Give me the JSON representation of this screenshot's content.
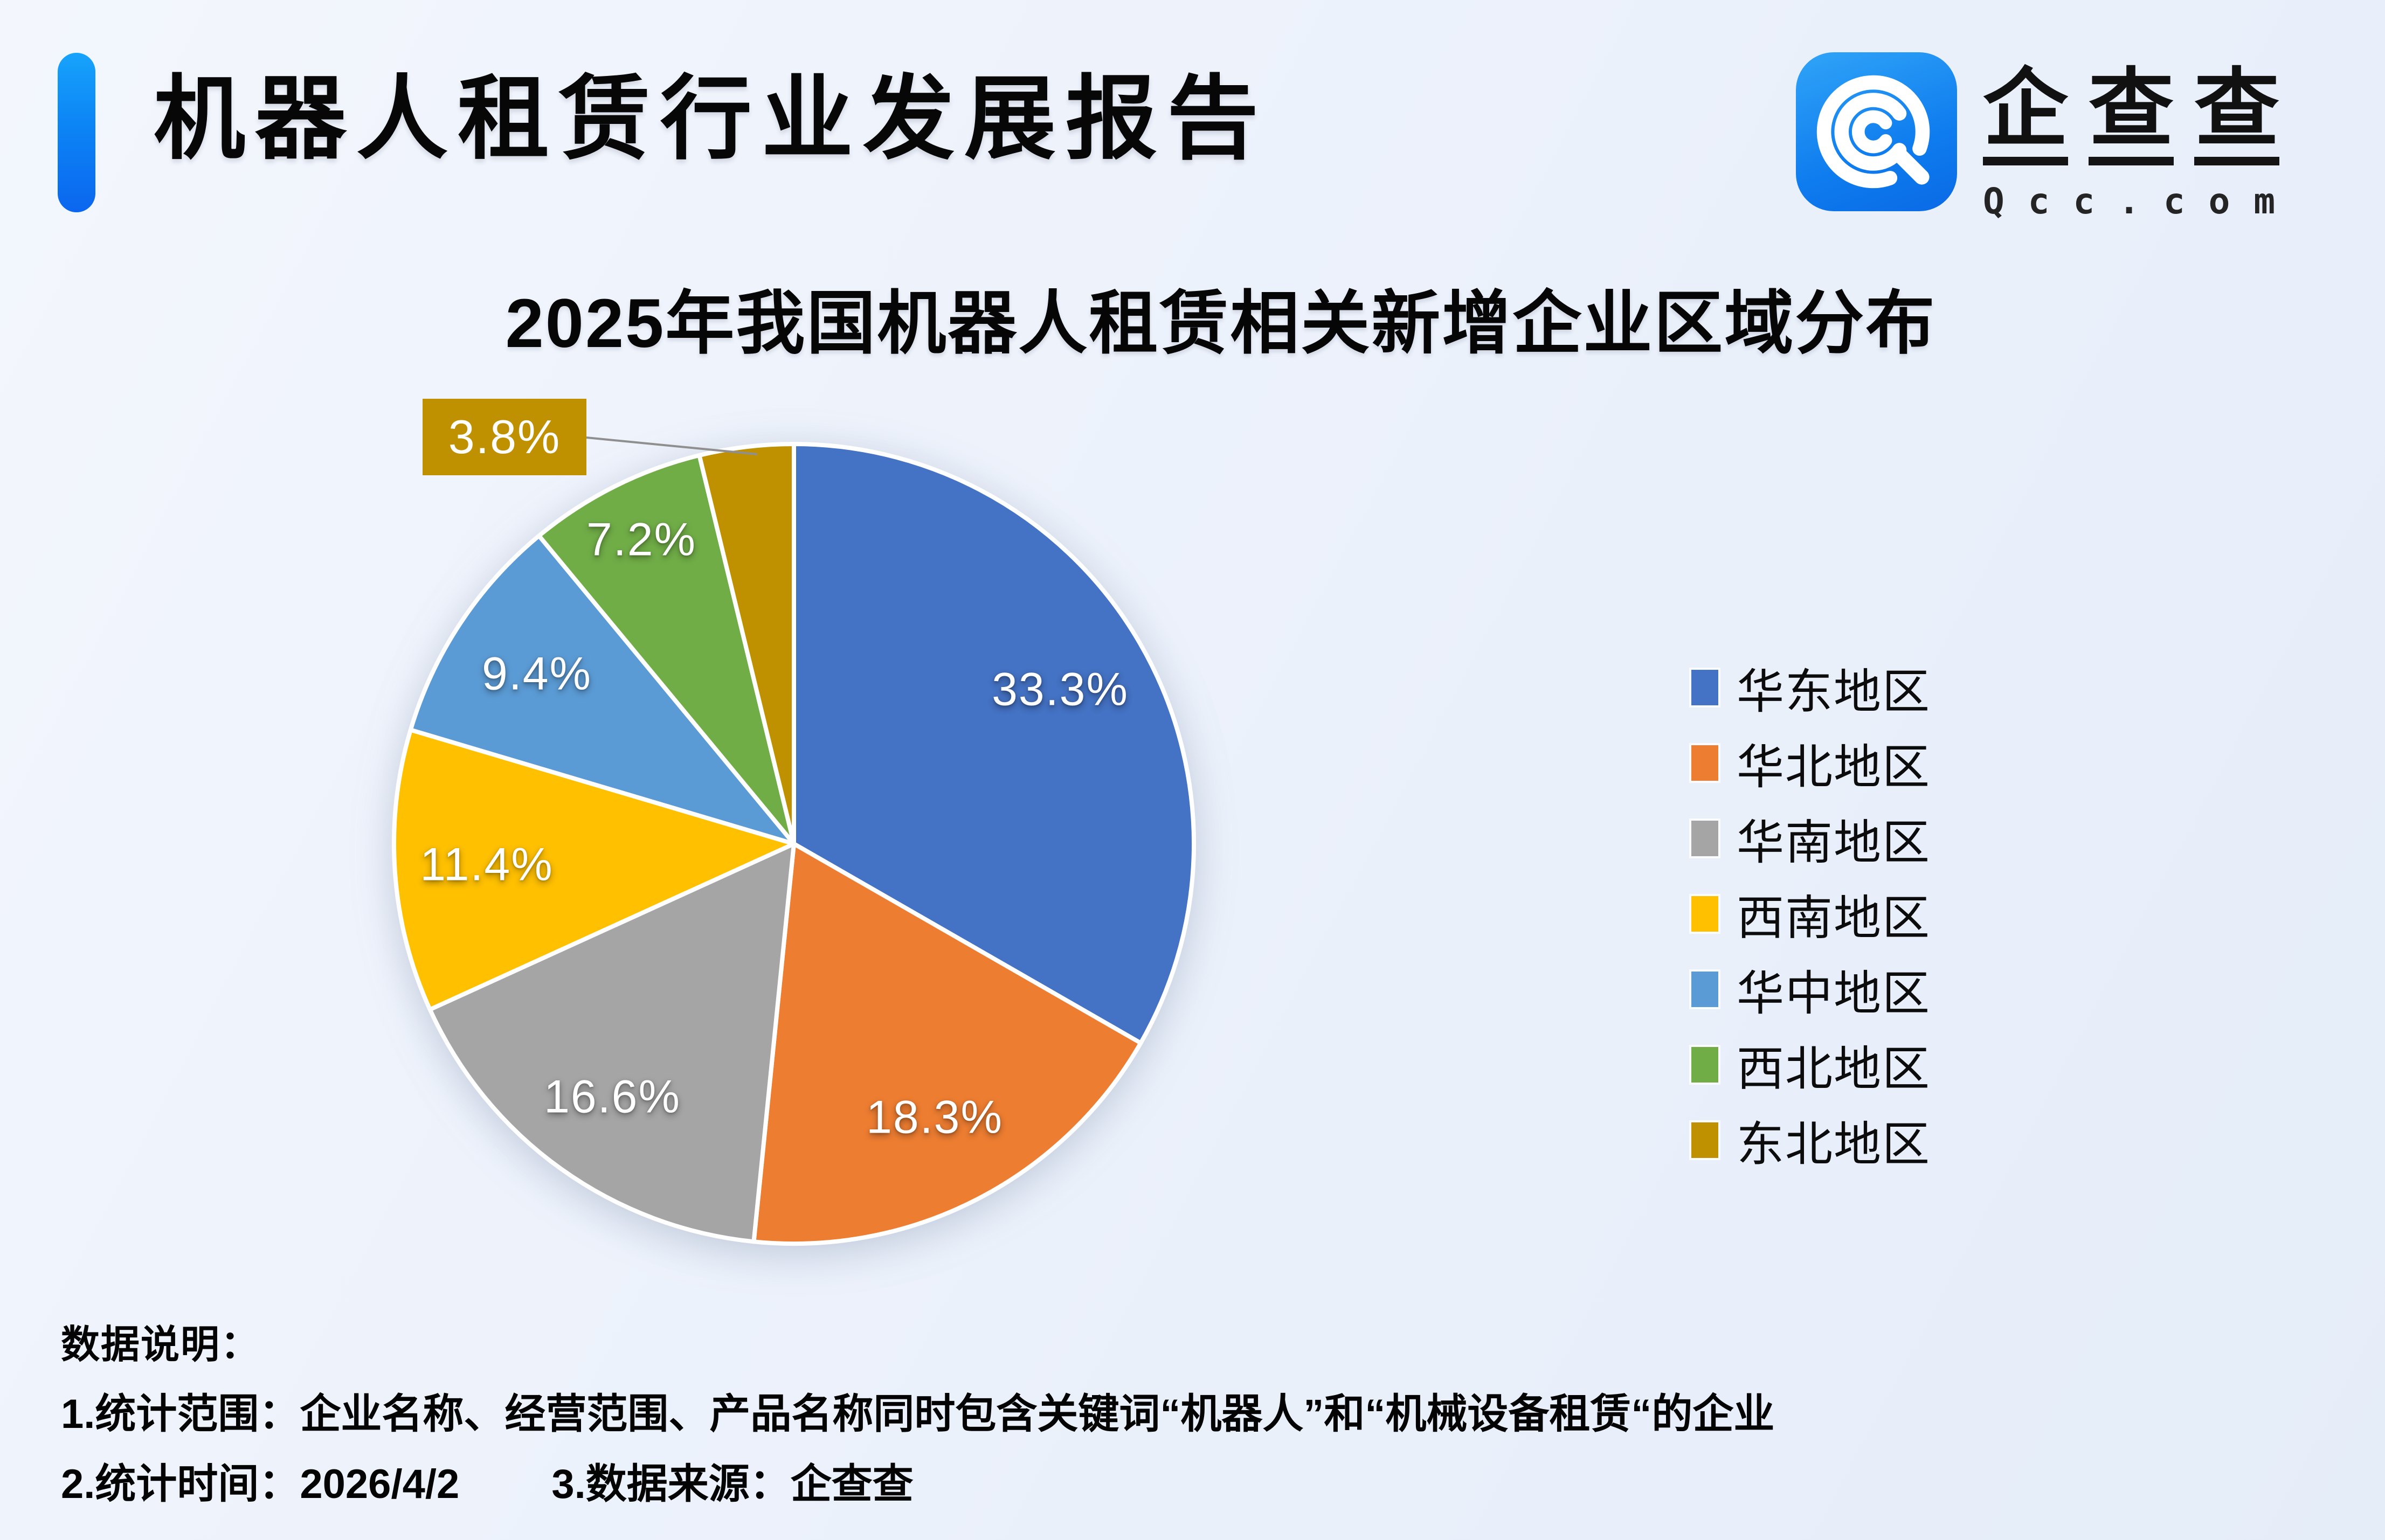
{
  "header": {
    "title": "机器人租赁行业发展报告",
    "accent_color_top": "#17a3fc",
    "accent_color_bottom": "#0b66ef"
  },
  "logo": {
    "name": "企查查",
    "domain": "Qcc.com",
    "icon": "qcc-spiral-q-icon",
    "icon_color": "#0e7cee"
  },
  "chart_data": {
    "type": "pie",
    "title": "2025年我国机器人租赁相关新增企业区域分布",
    "unit": "percent",
    "start_angle_deg": 0,
    "direction": "clockwise",
    "legend_position": "right",
    "slices": [
      {
        "label": "华东地区",
        "value": 33.3,
        "display": "33.3%",
        "color": "#4472C4"
      },
      {
        "label": "华北地区",
        "value": 18.3,
        "display": "18.3%",
        "color": "#ED7D31"
      },
      {
        "label": "华南地区",
        "value": 16.6,
        "display": "16.6%",
        "color": "#A5A5A5"
      },
      {
        "label": "西南地区",
        "value": 11.4,
        "display": "11.4%",
        "color": "#FFC000"
      },
      {
        "label": "华中地区",
        "value": 9.4,
        "display": "9.4%",
        "color": "#5B9BD5"
      },
      {
        "label": "西北地区",
        "value": 7.2,
        "display": "7.2%",
        "color": "#70AD47"
      },
      {
        "label": "东北地区",
        "value": 3.8,
        "display": "3.8%",
        "color": "#BF9000",
        "callout": true
      }
    ]
  },
  "notes": {
    "heading": "数据说明：",
    "line1": "1.统计范围：企业名称、经营范围、产品名称同时包含关键词“机器人”和“机械设备租赁“的企业",
    "line2_items": [
      "2.统计时间：2026/4/2",
      "3.数据来源：企查查"
    ]
  }
}
